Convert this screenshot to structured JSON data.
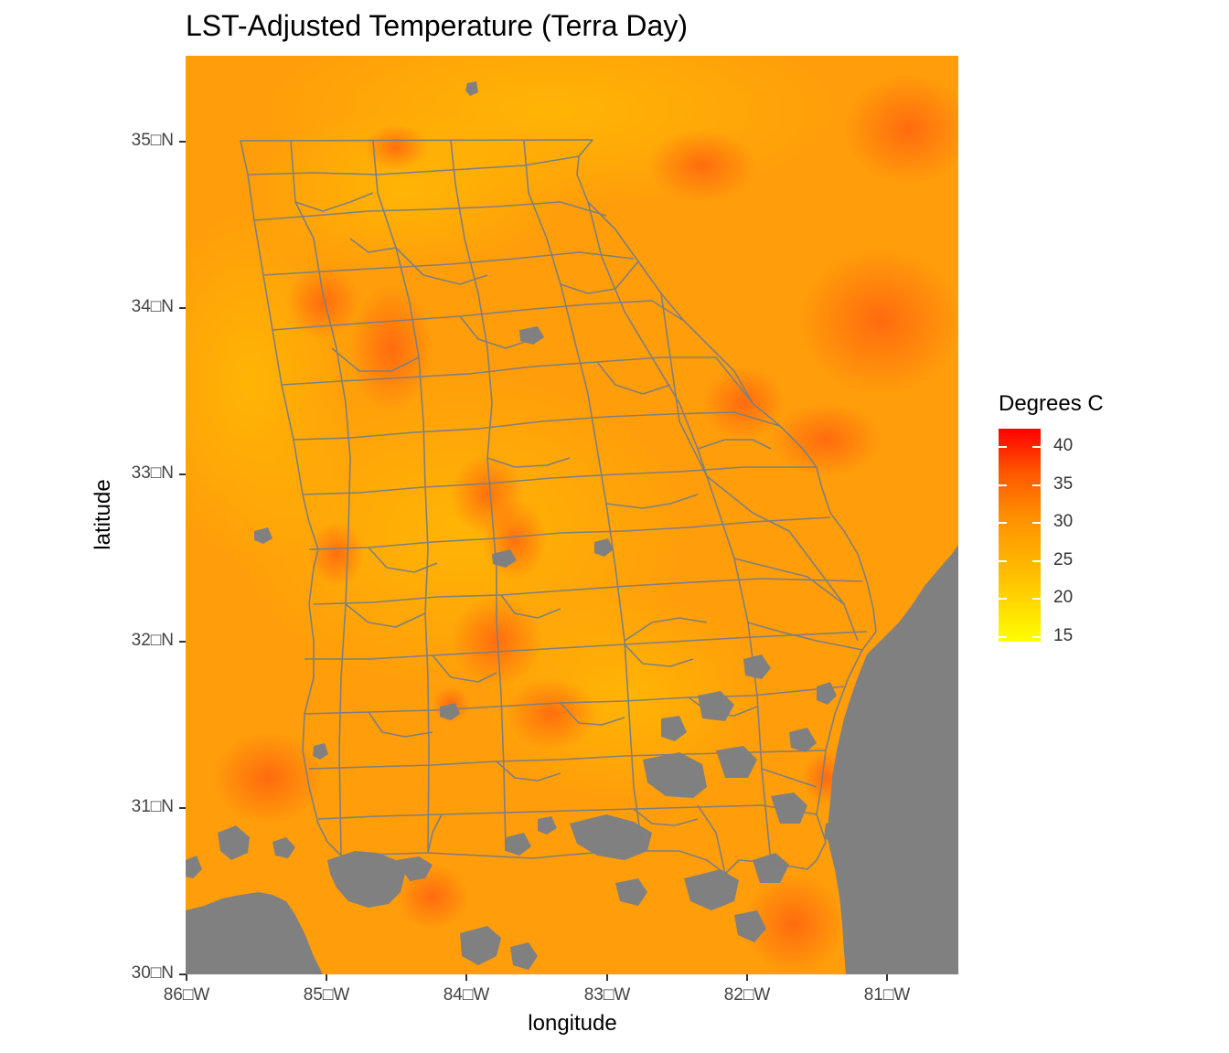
{
  "title": "LST-Adjusted Temperature (Terra Day)",
  "x_axis": {
    "label": "longitude",
    "ticks": [
      "86□W",
      "85□W",
      "84□W",
      "83□W",
      "82□W",
      "81□W"
    ]
  },
  "y_axis": {
    "label": "latitude",
    "ticks": [
      "35□N",
      "34□N",
      "33□N",
      "32□N",
      "31□N",
      "30□N"
    ]
  },
  "legend": {
    "title": "Degrees C",
    "ticks": [
      "40",
      "35",
      "30",
      "25",
      "20",
      "15"
    ],
    "gradient_colors": [
      "#ff0000",
      "#ff5500",
      "#ff8c00",
      "#ffb000",
      "#ffd400",
      "#ffff00"
    ]
  },
  "colors": {
    "missing_data": "#808080",
    "county_lines": "#7f7f7f",
    "base_temperature": "#ff9d0a"
  }
}
